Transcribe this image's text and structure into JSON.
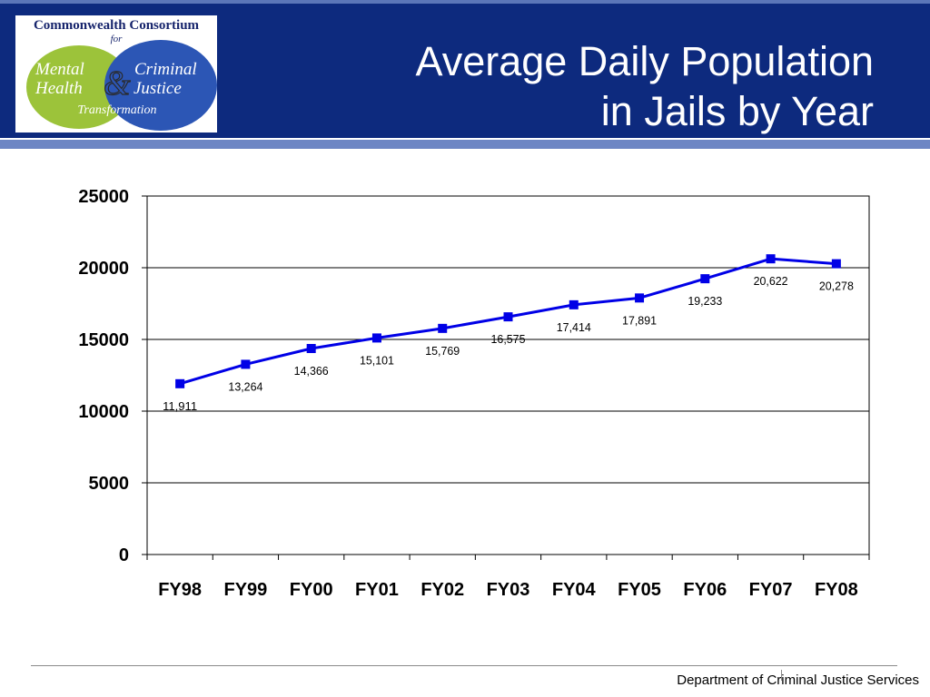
{
  "header": {
    "logo": {
      "line1": "Commonwealth Consortium",
      "line2": "for",
      "left_circle": [
        "Mental",
        "Health"
      ],
      "right_circle": [
        "Criminal",
        "Justice"
      ],
      "ampersand": "&",
      "bottom": "Transformation"
    },
    "title_line1": "Average Daily Population",
    "title_line2": "in Jails by Year"
  },
  "chart_data": {
    "type": "line",
    "categories": [
      "FY98",
      "FY99",
      "FY00",
      "FY01",
      "FY02",
      "FY03",
      "FY04",
      "FY05",
      "FY06",
      "FY07",
      "FY08"
    ],
    "series": [
      {
        "values": [
          11911,
          13264,
          14366,
          15101,
          15769,
          16575,
          17414,
          17891,
          19233,
          20622,
          20278
        ],
        "data_labels": [
          "11,911",
          "13,264",
          "14,366",
          "15,101",
          "15,769",
          "16,575",
          "17,414",
          "17,891",
          "19,233",
          "20,622",
          "20,278"
        ]
      }
    ],
    "y_ticks": [
      "0",
      "5000",
      "10000",
      "15000",
      "20000",
      "25000"
    ],
    "ylim": [
      0,
      25000
    ],
    "grid": true,
    "legend": "none",
    "line_color": "#0000e6",
    "marker": "square"
  },
  "footer": {
    "department": "Department of Criminal Justice Services"
  }
}
